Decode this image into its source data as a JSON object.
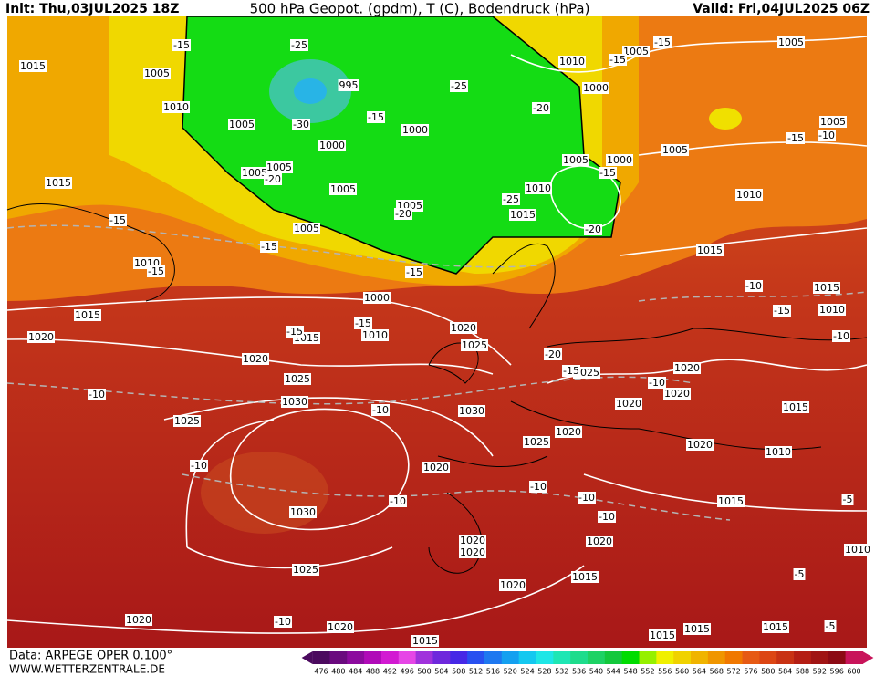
{
  "header": {
    "init": "Init: Thu,03JUL2025 18Z",
    "title": "500 hPa Geopot. (gpdm), T (C), Bodendruck (hPa)",
    "valid": "Valid: Fri,04JUL2025 06Z"
  },
  "footer": {
    "source": "Data: ARPEGE OPER 0.100°",
    "site": "WWW.WETTERZENTRALE.DE"
  },
  "colorbar": {
    "ticks": [
      476,
      480,
      484,
      488,
      492,
      496,
      500,
      504,
      508,
      512,
      516,
      520,
      524,
      528,
      532,
      536,
      540,
      544,
      548,
      552,
      556,
      560,
      564,
      568,
      572,
      576,
      580,
      584,
      588,
      592,
      596,
      600
    ],
    "colors": [
      "#4b0a5e",
      "#6a0a7e",
      "#8c0a9e",
      "#b00ab8",
      "#d21ad2",
      "#e646e6",
      "#a032dc",
      "#6e28dc",
      "#4628e6",
      "#2850f0",
      "#1e78f0",
      "#14a0f0",
      "#14c8f0",
      "#1ee6e6",
      "#1ee6b4",
      "#1edc8c",
      "#1ed264",
      "#14c83c",
      "#00dc00",
      "#96f000",
      "#f0f000",
      "#f0d200",
      "#f0b400",
      "#f09600",
      "#f07800",
      "#e65a14",
      "#dc4614",
      "#c83214",
      "#b41e14",
      "#a01414",
      "#8c0a14",
      "#c8145a"
    ]
  },
  "map": {
    "isobar_labels": [
      1015,
      1005,
      1010,
      1005,
      1005,
      1005,
      995,
      1000,
      1000,
      1005,
      1005,
      1005,
      1000,
      1010,
      1015,
      1015,
      1020,
      1020,
      1025,
      1030,
      1025,
      1030,
      1030,
      1025,
      1020,
      1020,
      1015,
      1020,
      1020,
      1020,
      1020,
      1015,
      1020,
      1025,
      1020,
      1025,
      1020,
      1020,
      1020,
      1020,
      1010,
      1015,
      1015,
      1020,
      1025,
      1015,
      1010,
      1005,
      1000,
      1000,
      1010,
      1005,
      1005,
      1005,
      1005,
      1010,
      1015,
      1015,
      1010,
      1015,
      1015,
      1015,
      1015,
      1010,
      1010
    ],
    "temperature_labels": [
      -15,
      -25,
      -25,
      -20,
      -15,
      -15,
      -15,
      -30,
      -20,
      -25,
      -20,
      -15,
      -20,
      -15,
      -15,
      -15,
      -15,
      -15,
      -15,
      -15,
      -10,
      -10,
      -15,
      -10,
      -20,
      -15,
      -10,
      -10,
      -10,
      -10,
      -10,
      -10,
      -10,
      -10,
      -5,
      -5,
      -5,
      -10
    ]
  }
}
